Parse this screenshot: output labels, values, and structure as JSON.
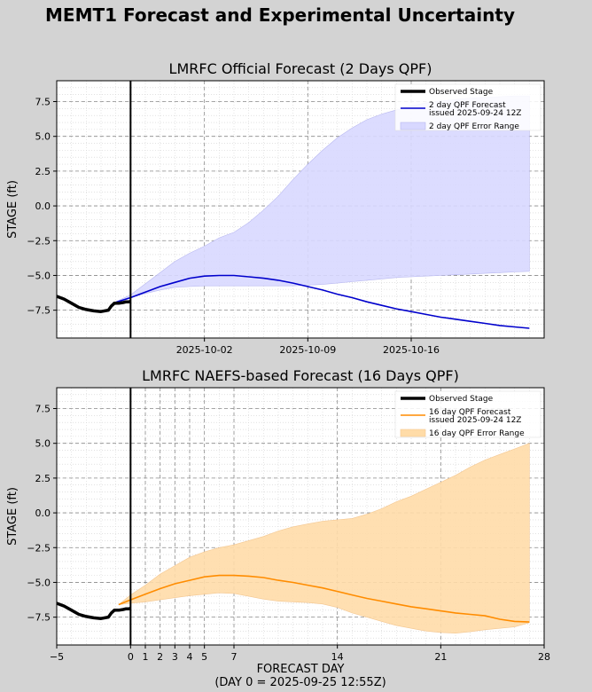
{
  "figure": {
    "title": "MEMT1 Forecast and Experimental Uncertainty",
    "background": "#d3d3d3"
  },
  "colors": {
    "observed": "#000000",
    "forecast_2day": "#0000cc",
    "band_2day": "#d8d8ff",
    "forecast_16day": "#ff8c00",
    "band_16day": "#ffdca8"
  },
  "chart_data": [
    {
      "type": "line",
      "title": "LMRFC Official Forecast (2 Days QPF)",
      "xlabel": "",
      "ylabel": "STAGE (ft)",
      "xlim": [
        -5,
        28
      ],
      "ylim": [
        -9.5,
        9.0
      ],
      "xticks": [
        {
          "x": 5,
          "label": "2025-10-02"
        },
        {
          "x": 12,
          "label": "2025-10-09"
        },
        {
          "x": 19,
          "label": "2025-10-16"
        }
      ],
      "yticks": [
        -7.5,
        -5.0,
        -2.5,
        0.0,
        2.5,
        5.0,
        7.5
      ],
      "ytick_labels": [
        "−7.5",
        "−5.0",
        "−2.5",
        "0.0",
        "2.5",
        "5.0",
        "7.5"
      ],
      "grid": true,
      "vline_x": 0,
      "legend_position": "top-right",
      "legend": [
        {
          "kind": "observed",
          "lines": [
            "Observed Stage"
          ]
        },
        {
          "kind": "forecast",
          "lines": [
            "2 day QPF Forecast",
            "issued 2025-09-24 12Z"
          ]
        },
        {
          "kind": "band",
          "lines": [
            "2 day QPF Error Range"
          ]
        }
      ],
      "observed": {
        "x": [
          -5,
          -4.5,
          -4,
          -3.5,
          -3,
          -2.5,
          -2,
          -1.5,
          -1.3,
          -1.1,
          -1,
          -0.8,
          -0.5,
          -0.3,
          -0.1,
          0
        ],
        "y": [
          -6.5,
          -6.7,
          -7.0,
          -7.3,
          -7.45,
          -7.55,
          -7.6,
          -7.5,
          -7.2,
          -7.0,
          -7.0,
          -7.0,
          -6.95,
          -6.9,
          -6.9,
          -6.85
        ]
      },
      "forecast": {
        "x": [
          -1.2,
          0,
          1,
          2,
          3,
          4,
          5,
          6,
          7,
          8,
          9,
          10,
          11,
          12,
          13,
          14,
          15,
          16,
          17,
          18,
          19,
          20,
          21,
          22,
          23,
          24,
          25,
          26,
          27
        ],
        "y": [
          -7.0,
          -6.6,
          -6.2,
          -5.8,
          -5.5,
          -5.2,
          -5.05,
          -5.0,
          -5.0,
          -5.1,
          -5.2,
          -5.35,
          -5.55,
          -5.8,
          -6.05,
          -6.35,
          -6.6,
          -6.9,
          -7.15,
          -7.4,
          -7.6,
          -7.8,
          -8.0,
          -8.15,
          -8.3,
          -8.45,
          -8.6,
          -8.7,
          -8.8
        ]
      },
      "band": {
        "x": [
          -1.2,
          0,
          1,
          2,
          3,
          4,
          5,
          6,
          7,
          8,
          9,
          10,
          11,
          12,
          13,
          14,
          15,
          16,
          17,
          18,
          19,
          20,
          21,
          22,
          23,
          24,
          25,
          26,
          27
        ],
        "lower": [
          -7.0,
          -6.6,
          -6.3,
          -6.05,
          -5.85,
          -5.8,
          -5.75,
          -5.75,
          -5.75,
          -5.75,
          -5.75,
          -5.75,
          -5.75,
          -5.7,
          -5.65,
          -5.55,
          -5.45,
          -5.35,
          -5.25,
          -5.15,
          -5.1,
          -5.05,
          -5.0,
          -4.95,
          -4.9,
          -4.85,
          -4.8,
          -4.75,
          -4.7
        ],
        "upper": [
          -7.0,
          -6.4,
          -5.6,
          -4.8,
          -4.0,
          -3.4,
          -2.9,
          -2.3,
          -1.9,
          -1.2,
          -0.3,
          0.7,
          1.9,
          3.0,
          4.0,
          4.9,
          5.6,
          6.2,
          6.6,
          6.9,
          7.2,
          7.4,
          7.55,
          7.65,
          7.75,
          7.8,
          7.85,
          7.9,
          7.9
        ]
      }
    },
    {
      "type": "line",
      "title": "LMRFC NAEFS-based Forecast (16 Days QPF)",
      "xlabel": "FORECAST DAY",
      "xlabel2": "(DAY 0 = 2025-09-25 12:55Z)",
      "ylabel": "STAGE (ft)",
      "xlim": [
        -5,
        28
      ],
      "ylim": [
        -9.5,
        9.0
      ],
      "xticks": [
        {
          "x": -5,
          "label": "−5"
        },
        {
          "x": 0,
          "label": "0"
        },
        {
          "x": 1,
          "label": "1"
        },
        {
          "x": 2,
          "label": "2"
        },
        {
          "x": 3,
          "label": "3"
        },
        {
          "x": 4,
          "label": "4"
        },
        {
          "x": 5,
          "label": "5"
        },
        {
          "x": 7,
          "label": "7"
        },
        {
          "x": 14,
          "label": "14"
        },
        {
          "x": 21,
          "label": "21"
        },
        {
          "x": 28,
          "label": "28"
        }
      ],
      "yticks": [
        -7.5,
        -5.0,
        -2.5,
        0.0,
        2.5,
        5.0,
        7.5
      ],
      "ytick_labels": [
        "−7.5",
        "−5.0",
        "−2.5",
        "0.0",
        "2.5",
        "5.0",
        "7.5"
      ],
      "grid": true,
      "vline_x": 0,
      "legend_position": "top-right",
      "legend": [
        {
          "kind": "observed",
          "lines": [
            "Observed Stage"
          ]
        },
        {
          "kind": "forecast",
          "lines": [
            "16 day QPF Forecast",
            "issued 2025-09-24 12Z"
          ]
        },
        {
          "kind": "band",
          "lines": [
            "16 day QPF Error Range"
          ]
        }
      ],
      "observed": {
        "x": [
          -5,
          -4.5,
          -4,
          -3.5,
          -3,
          -2.5,
          -2,
          -1.5,
          -1.3,
          -1.1,
          -1,
          -0.8,
          -0.5,
          -0.3,
          -0.1,
          0
        ],
        "y": [
          -6.5,
          -6.7,
          -7.0,
          -7.3,
          -7.45,
          -7.55,
          -7.6,
          -7.5,
          -7.2,
          -7.0,
          -7.0,
          -7.0,
          -6.95,
          -6.9,
          -6.9,
          -6.85
        ]
      },
      "forecast": {
        "x": [
          -0.8,
          0,
          1,
          2,
          3,
          4,
          5,
          6,
          7,
          8,
          9,
          10,
          11,
          12,
          13,
          14,
          15,
          16,
          17,
          18,
          19,
          20,
          21,
          22,
          23,
          24,
          25,
          26,
          27
        ],
        "y": [
          -6.6,
          -6.25,
          -5.85,
          -5.45,
          -5.1,
          -4.85,
          -4.6,
          -4.5,
          -4.5,
          -4.55,
          -4.65,
          -4.85,
          -5.0,
          -5.2,
          -5.4,
          -5.65,
          -5.9,
          -6.15,
          -6.35,
          -6.55,
          -6.75,
          -6.9,
          -7.05,
          -7.2,
          -7.3,
          -7.4,
          -7.65,
          -7.8,
          -7.85
        ]
      },
      "band": {
        "x": [
          -0.8,
          0,
          1,
          2,
          3,
          4,
          5,
          6,
          7,
          8,
          9,
          10,
          11,
          12,
          13,
          14,
          15,
          16,
          17,
          18,
          19,
          20,
          21,
          22,
          23,
          24,
          25,
          26,
          27
        ],
        "lower": [
          -6.6,
          -6.5,
          -6.4,
          -6.25,
          -6.1,
          -5.95,
          -5.85,
          -5.75,
          -5.8,
          -6.0,
          -6.2,
          -6.35,
          -6.4,
          -6.45,
          -6.55,
          -6.8,
          -7.2,
          -7.5,
          -7.8,
          -8.1,
          -8.3,
          -8.5,
          -8.6,
          -8.65,
          -8.55,
          -8.4,
          -8.3,
          -8.2,
          -7.9
        ],
        "upper": [
          -6.6,
          -5.9,
          -5.2,
          -4.4,
          -3.8,
          -3.2,
          -2.8,
          -2.5,
          -2.3,
          -2.0,
          -1.7,
          -1.3,
          -1.0,
          -0.8,
          -0.6,
          -0.5,
          -0.4,
          -0.1,
          0.3,
          0.8,
          1.2,
          1.7,
          2.2,
          2.7,
          3.3,
          3.8,
          4.2,
          4.6,
          5.0
        ]
      }
    }
  ]
}
